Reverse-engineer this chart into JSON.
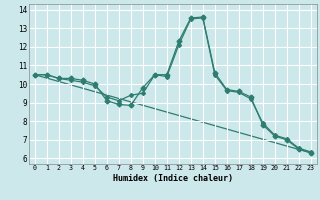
{
  "xlabel": "Humidex (Indice chaleur)",
  "bg_color": "#cce8eb",
  "grid_color": "#ffffff",
  "line_color": "#2e7d6e",
  "xlim": [
    -0.5,
    23.5
  ],
  "ylim": [
    5.7,
    14.3
  ],
  "xticks": [
    0,
    1,
    2,
    3,
    4,
    5,
    6,
    7,
    8,
    9,
    10,
    11,
    12,
    13,
    14,
    15,
    16,
    17,
    18,
    19,
    20,
    21,
    22,
    23
  ],
  "yticks": [
    6,
    7,
    8,
    9,
    10,
    11,
    12,
    13,
    14
  ],
  "lines": [
    {
      "x": [
        0,
        1,
        2,
        3,
        4,
        5,
        6,
        7,
        8,
        9,
        10,
        11,
        12,
        13,
        14,
        15,
        16,
        17,
        18,
        19,
        20,
        21,
        22,
        23
      ],
      "y": [
        10.5,
        10.5,
        10.3,
        10.3,
        10.2,
        10.0,
        9.1,
        8.9,
        8.85,
        9.8,
        10.5,
        10.5,
        12.3,
        13.55,
        13.6,
        10.6,
        9.7,
        9.6,
        9.3,
        7.8,
        7.2,
        7.0,
        6.5,
        6.3
      ]
    },
    {
      "x": [
        0,
        1,
        2,
        3,
        4,
        5,
        6,
        7,
        8,
        9,
        10,
        11,
        12,
        13,
        14,
        15,
        16,
        17,
        18,
        19,
        20,
        21,
        22,
        23
      ],
      "y": [
        10.5,
        10.5,
        10.3,
        10.2,
        10.1,
        9.9,
        9.3,
        9.1,
        9.4,
        9.5,
        10.5,
        10.4,
        12.1,
        13.5,
        13.55,
        10.5,
        9.65,
        9.55,
        9.2,
        7.9,
        7.25,
        7.05,
        6.55,
        6.35
      ]
    },
    {
      "x": [
        0,
        23
      ],
      "y": [
        10.5,
        6.3
      ]
    }
  ]
}
